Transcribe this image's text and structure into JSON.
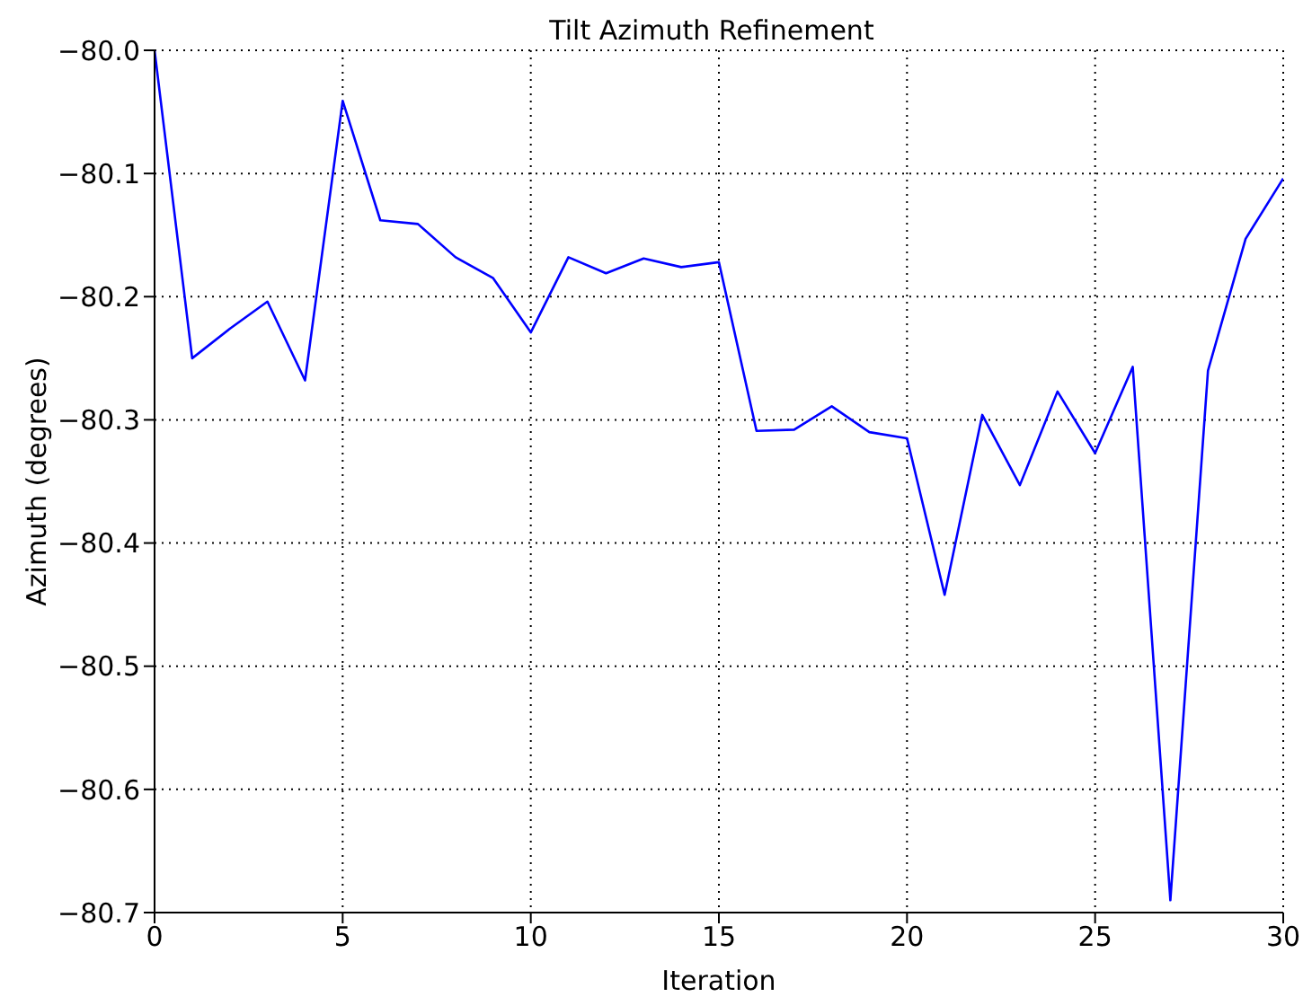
{
  "chart_data": {
    "type": "line",
    "title": "Tilt Azimuth Refinement",
    "xlabel": "Iteration",
    "ylabel": "Azimuth (degrees)",
    "x": [
      0,
      1,
      2,
      3,
      4,
      5,
      6,
      7,
      8,
      9,
      10,
      11,
      12,
      13,
      14,
      15,
      16,
      17,
      18,
      19,
      20,
      21,
      22,
      23,
      24,
      25,
      26,
      27,
      28,
      29,
      30
    ],
    "series": [
      {
        "color": "#0000ff",
        "values": [
          -80.0,
          -80.25,
          -80.226,
          -80.204,
          -80.268,
          -80.041,
          -80.138,
          -80.141,
          -80.168,
          -80.185,
          -80.229,
          -80.168,
          -80.181,
          -80.169,
          -80.176,
          -80.172,
          -80.309,
          -80.308,
          -80.289,
          -80.31,
          -80.315,
          -80.442,
          -80.296,
          -80.353,
          -80.277,
          -80.327,
          -80.257,
          -80.69,
          -80.26,
          -80.153,
          -80.104
        ]
      }
    ],
    "xlim": [
      0,
      30
    ],
    "xticks": [
      0,
      5,
      10,
      15,
      20,
      25,
      30
    ],
    "ylim": [
      -80.7,
      -80.0
    ],
    "yticks": [
      {
        "value": -80.7,
        "label": "−80.7"
      },
      {
        "value": -80.6,
        "label": "−80.6"
      },
      {
        "value": -80.5,
        "label": "−80.5"
      },
      {
        "value": -80.4,
        "label": "−80.4"
      },
      {
        "value": -80.3,
        "label": "−80.3"
      },
      {
        "value": -80.2,
        "label": "−80.2"
      },
      {
        "value": -80.1,
        "label": "−80.1"
      },
      {
        "value": -80.0,
        "label": "−80.0"
      }
    ],
    "grid": true,
    "marker": "none",
    "line_style": "solid",
    "legend": false
  }
}
